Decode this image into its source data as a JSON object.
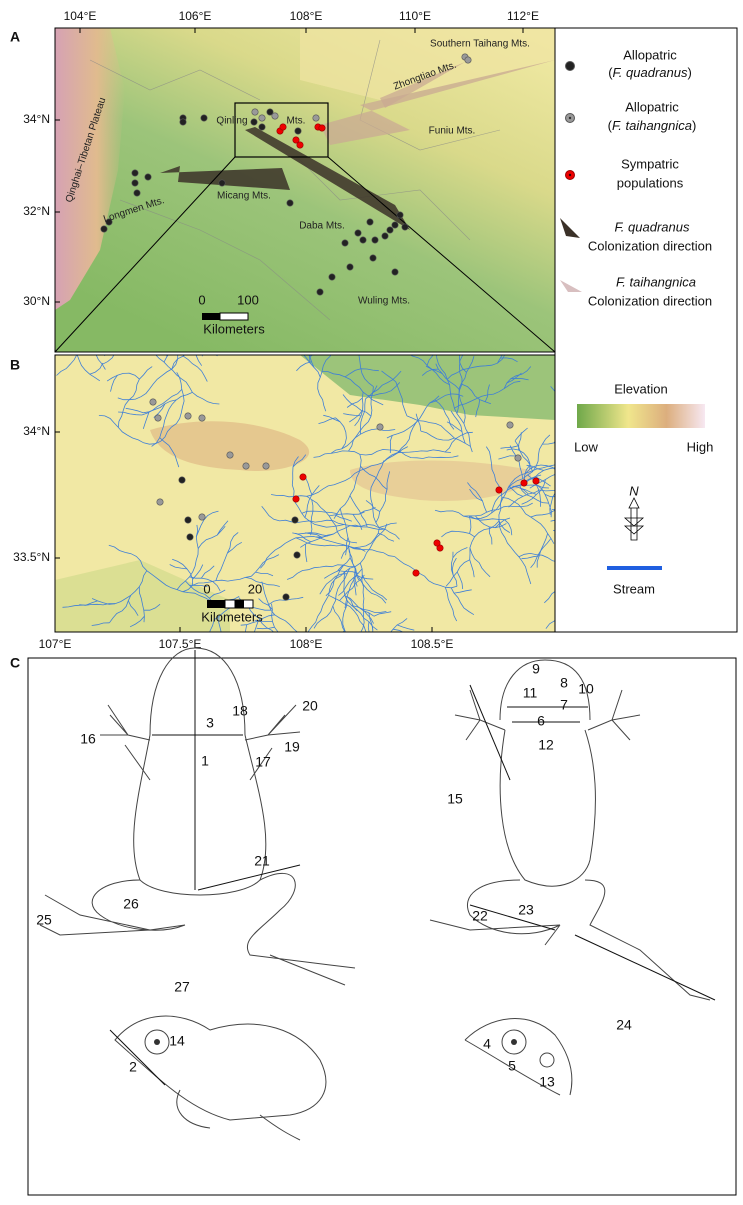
{
  "panel_a": {
    "label": "A",
    "lon_ticks": [
      "104°E",
      "106°E",
      "108°E",
      "110°E",
      "112°E"
    ],
    "lat_ticks": [
      "34°N",
      "32°N",
      "30°N"
    ],
    "places": [
      "Southern Taihang Mts.",
      "Zhongtiao Mts.",
      "Qinling",
      "Mts.",
      "Funiu Mts.",
      "Micang Mts.",
      "Longmen Mts.",
      "Qinghai–Tibetan Plateau",
      "Daba Mts.",
      "Wuling Mts."
    ],
    "scale": [
      "0",
      "100"
    ],
    "scale_unit": "Kilometers"
  },
  "legend": {
    "items": [
      {
        "line1": "Allopatric",
        "open": "(",
        "species": "F. quadranus",
        "close": ")"
      },
      {
        "line1": "Allopatric",
        "open": "(",
        "species": "F. taihangnica",
        "close": ")"
      },
      {
        "line1": "Sympatric",
        "line2": "populations"
      },
      {
        "species": "F. quadranus",
        "line2": "Colonization direction"
      },
      {
        "species": "F. taihangnica",
        "line2": "Colonization direction"
      }
    ],
    "elevation": {
      "title": "Elevation",
      "low": "Low",
      "high": "High"
    },
    "north": "N",
    "stream": "Stream"
  },
  "panel_b": {
    "label": "B",
    "lon_ticks": [
      "107°E",
      "107.5°E",
      "108°E",
      "108.5°E"
    ],
    "lat_ticks": [
      "34°N",
      "33.5°N"
    ],
    "scale": [
      "0",
      "20"
    ],
    "scale_unit": "Kilometers"
  },
  "panel_c": {
    "label": "C",
    "measurements": [
      "1",
      "2",
      "3",
      "4",
      "5",
      "6",
      "7",
      "8",
      "9",
      "10",
      "11",
      "12",
      "13",
      "14",
      "15",
      "16",
      "17",
      "18",
      "19",
      "20",
      "21",
      "22",
      "23",
      "24",
      "25",
      "26",
      "27"
    ]
  }
}
